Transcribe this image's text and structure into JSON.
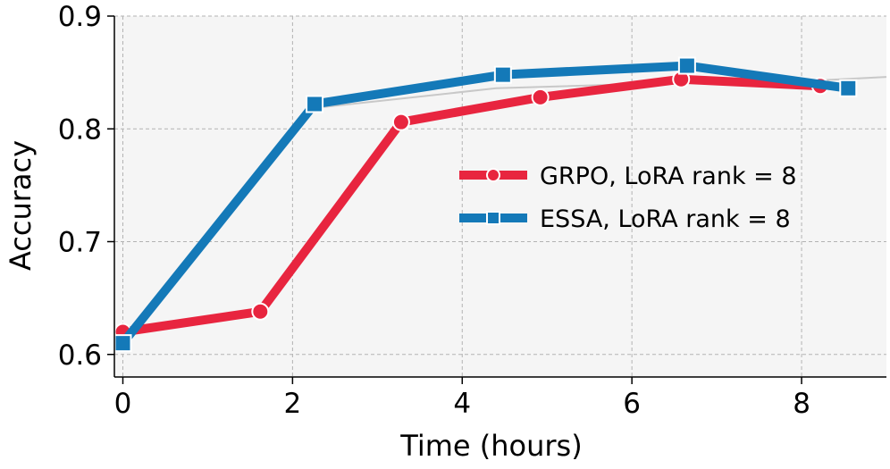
{
  "chart_data": {
    "type": "line",
    "xlabel": "Time (hours)",
    "ylabel": "Accuracy",
    "xlim": [
      -0.1,
      9.0
    ],
    "ylim": [
      0.58,
      0.9
    ],
    "xticks": [
      0,
      2,
      4,
      6,
      8
    ],
    "yticks": [
      0.6,
      0.7,
      0.8,
      0.9
    ],
    "xtick_labels": [
      "0",
      "2",
      "4",
      "6",
      "8"
    ],
    "ytick_labels": [
      "0.6",
      "0.7",
      "0.8",
      "0.9"
    ],
    "grid": true,
    "legend_position": "center-right",
    "series": [
      {
        "name": "GRPO, LoRA rank = 8",
        "color": "#e8253f",
        "marker": "circle",
        "x": [
          0.0,
          1.62,
          3.28,
          4.92,
          6.58,
          8.22
        ],
        "y": [
          0.62,
          0.638,
          0.806,
          0.828,
          0.844,
          0.838
        ]
      },
      {
        "name": "ESSA, LoRA rank = 8",
        "color": "#1479b8",
        "marker": "square",
        "x": [
          0.0,
          2.26,
          4.48,
          6.65,
          8.55
        ],
        "y": [
          0.61,
          0.822,
          0.848,
          0.856,
          0.836
        ]
      }
    ],
    "background_trend": {
      "color": "#c8c8c8",
      "x": [
        0.0,
        2.2,
        4.4,
        6.6,
        8.2,
        9.0
      ],
      "y": [
        0.612,
        0.818,
        0.836,
        0.841,
        0.843,
        0.846
      ]
    }
  }
}
